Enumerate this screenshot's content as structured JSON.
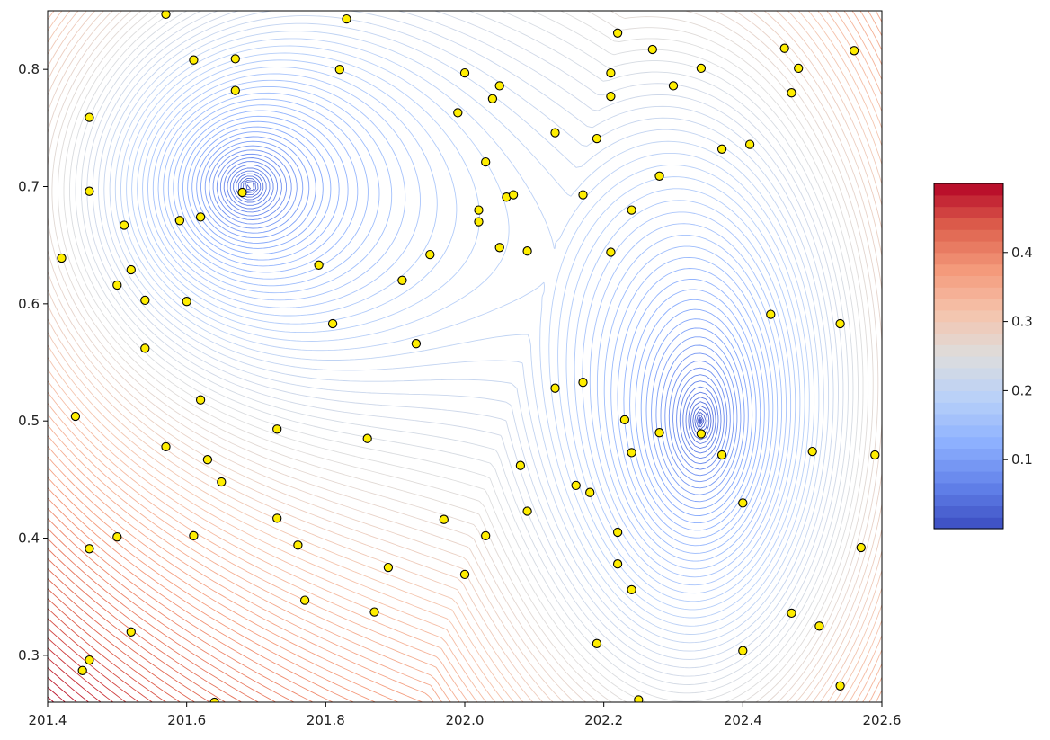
{
  "chart_data": {
    "type": "contour",
    "title": "",
    "xlabel": "",
    "ylabel": "",
    "xlim": [
      201.4,
      202.6
    ],
    "ylim": [
      0.26,
      0.85
    ],
    "x_ticks": [
      "201.4",
      "201.6",
      "201.8",
      "202.0",
      "202.2",
      "202.4",
      "202.6"
    ],
    "y_ticks": [
      "0.3",
      "0.4",
      "0.5",
      "0.6",
      "0.7",
      "0.8"
    ],
    "colormap": "coolwarm",
    "colorbar": {
      "min": 0.0,
      "max": 0.5,
      "ticks": [
        "0.1",
        "0.2",
        "0.3",
        "0.4"
      ]
    },
    "contour_levels": 90,
    "field_minima": [
      {
        "x": 201.69,
        "y": 0.7
      },
      {
        "x": 202.34,
        "y": 0.5
      }
    ],
    "point_color": "#ffee00",
    "points": [
      [
        201.42,
        0.639
      ],
      [
        201.44,
        0.504
      ],
      [
        201.45,
        0.287
      ],
      [
        201.46,
        0.759
      ],
      [
        201.46,
        0.696
      ],
      [
        201.46,
        0.391
      ],
      [
        201.46,
        0.296
      ],
      [
        201.5,
        0.616
      ],
      [
        201.5,
        0.401
      ],
      [
        201.51,
        0.667
      ],
      [
        201.52,
        0.629
      ],
      [
        201.52,
        0.32
      ],
      [
        201.54,
        0.603
      ],
      [
        201.54,
        0.562
      ],
      [
        201.57,
        0.847
      ],
      [
        201.57,
        0.478
      ],
      [
        201.59,
        0.671
      ],
      [
        201.6,
        0.602
      ],
      [
        201.61,
        0.402
      ],
      [
        201.61,
        0.808
      ],
      [
        201.62,
        0.674
      ],
      [
        201.62,
        0.518
      ],
      [
        201.63,
        0.467
      ],
      [
        201.65,
        0.448
      ],
      [
        201.64,
        0.26
      ],
      [
        201.67,
        0.782
      ],
      [
        201.67,
        0.809
      ],
      [
        201.68,
        0.695
      ],
      [
        201.73,
        0.493
      ],
      [
        201.73,
        0.417
      ],
      [
        201.76,
        0.394
      ],
      [
        201.77,
        0.347
      ],
      [
        201.79,
        0.633
      ],
      [
        201.81,
        0.583
      ],
      [
        201.82,
        0.8
      ],
      [
        201.83,
        0.843
      ],
      [
        201.86,
        0.485
      ],
      [
        201.87,
        0.337
      ],
      [
        201.89,
        0.375
      ],
      [
        201.91,
        0.62
      ],
      [
        201.93,
        0.566
      ],
      [
        201.95,
        0.642
      ],
      [
        201.97,
        0.416
      ],
      [
        201.99,
        0.763
      ],
      [
        202.0,
        0.369
      ],
      [
        202.0,
        0.797
      ],
      [
        202.02,
        0.67
      ],
      [
        202.02,
        0.68
      ],
      [
        202.03,
        0.402
      ],
      [
        202.03,
        0.721
      ],
      [
        202.04,
        0.775
      ],
      [
        202.05,
        0.786
      ],
      [
        202.05,
        0.648
      ],
      [
        202.06,
        0.691
      ],
      [
        202.07,
        0.693
      ],
      [
        202.08,
        0.462
      ],
      [
        202.09,
        0.423
      ],
      [
        202.09,
        0.645
      ],
      [
        202.13,
        0.528
      ],
      [
        202.13,
        0.746
      ],
      [
        202.16,
        0.445
      ],
      [
        202.17,
        0.533
      ],
      [
        202.17,
        0.693
      ],
      [
        202.18,
        0.439
      ],
      [
        202.19,
        0.741
      ],
      [
        202.19,
        0.31
      ],
      [
        202.21,
        0.797
      ],
      [
        202.21,
        0.777
      ],
      [
        202.21,
        0.644
      ],
      [
        202.22,
        0.405
      ],
      [
        202.22,
        0.378
      ],
      [
        202.22,
        0.831
      ],
      [
        202.23,
        0.501
      ],
      [
        202.24,
        0.356
      ],
      [
        202.24,
        0.473
      ],
      [
        202.24,
        0.68
      ],
      [
        202.25,
        0.262
      ],
      [
        202.27,
        0.817
      ],
      [
        202.28,
        0.709
      ],
      [
        202.28,
        0.49
      ],
      [
        202.3,
        0.786
      ],
      [
        202.34,
        0.489
      ],
      [
        202.34,
        0.801
      ],
      [
        202.37,
        0.471
      ],
      [
        202.37,
        0.732
      ],
      [
        202.4,
        0.304
      ],
      [
        202.4,
        0.43
      ],
      [
        202.41,
        0.736
      ],
      [
        202.44,
        0.591
      ],
      [
        202.46,
        0.818
      ],
      [
        202.47,
        0.78
      ],
      [
        202.47,
        0.336
      ],
      [
        202.48,
        0.801
      ],
      [
        202.5,
        0.474
      ],
      [
        202.51,
        0.325
      ],
      [
        202.54,
        0.583
      ],
      [
        202.54,
        0.274
      ],
      [
        202.56,
        0.816
      ],
      [
        202.57,
        0.392
      ],
      [
        202.59,
        0.471
      ]
    ]
  }
}
